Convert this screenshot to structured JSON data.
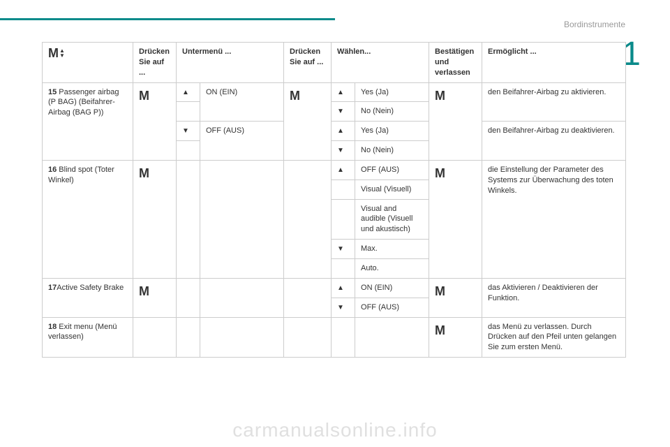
{
  "header": {
    "right_label": "Bordinstrumente",
    "section_number": "1"
  },
  "watermark": "carmanualsonline.info",
  "headers": {
    "col1_icon": "M",
    "col2": "Drücken Sie auf ...",
    "col3": "Untermenü ...",
    "col4": "Drücken Sie auf ...",
    "col5": "Wählen...",
    "col6": "Bestätigen und verlassen",
    "col7": "Ermöglicht ..."
  },
  "triangles": {
    "up": "▲",
    "down": "▼"
  },
  "m": "M",
  "rows": {
    "r15": {
      "num": "15",
      "label": " Passenger airbag (P BAG) (Beifahrer-Airbag (BAG P))",
      "on": "ON (EIN)",
      "off": "OFF (AUS)",
      "yes": "Yes (Ja)",
      "no": "No (Nein)",
      "enable1": "den Beifahrer-Airbag zu aktivieren.",
      "enable2": "den Beifahrer-Airbag zu deaktivieren."
    },
    "r16": {
      "num": "16",
      "label": " Blind spot (Toter Winkel)",
      "opt1": "OFF (AUS)",
      "opt2": "Visual (Visuell)",
      "opt3": "Visual and audible (Visuell und akustisch)",
      "opt4": "Max.",
      "opt5": "Auto.",
      "enable": "die Einstellung der Parameter des Systems zur Überwachung des toten Winkels."
    },
    "r17": {
      "num": "17",
      "label": "Active Safety Brake",
      "on": "ON (EIN)",
      "off": "OFF (AUS)",
      "enable": "das Aktivieren / Deaktivieren der Funktion."
    },
    "r18": {
      "num": "18",
      "label": " Exit menu (Menü verlassen)",
      "enable": "das Menü zu verlassen. Durch Drücken auf den Pfeil unten gelangen Sie zum ersten Menü."
    }
  }
}
